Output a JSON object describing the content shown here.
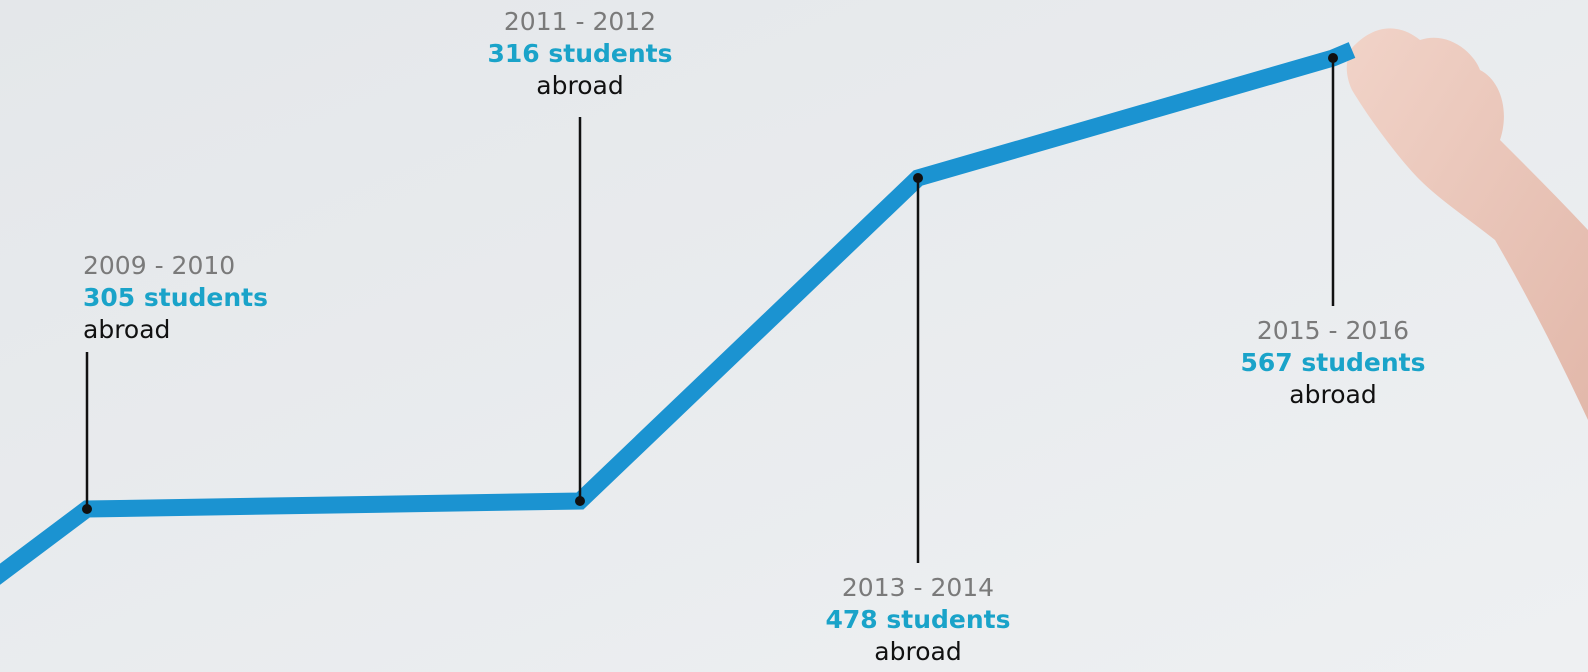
{
  "milestones": [
    {
      "period": "2009 - 2010",
      "count": "305 students",
      "note": "abroad"
    },
    {
      "period": "2011 - 2012",
      "count": "316 students",
      "note": "abroad"
    },
    {
      "period": "2013 - 2014",
      "count": "478 students",
      "note": "abroad"
    },
    {
      "period": "2015 - 2016",
      "count": "567 students",
      "note": "abroad"
    }
  ]
}
